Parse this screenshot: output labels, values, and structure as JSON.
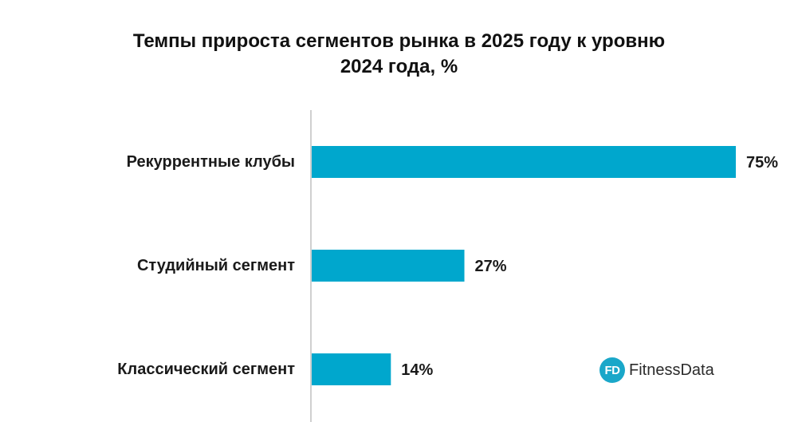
{
  "chart_data": {
    "type": "bar",
    "orientation": "horizontal",
    "title_lines": [
      "Темпы прироста сегментов рынка в 2025 году к уровню",
      "2024 года, %"
    ],
    "categories": [
      "Рекуррентные клубы",
      "Студийный сегмент",
      "Классический сегмент"
    ],
    "values": [
      75,
      27,
      14
    ],
    "value_labels": [
      "75%",
      "27%",
      "14%"
    ],
    "xlim": [
      0,
      75
    ],
    "grid": false,
    "bar_color": "#00a7cd",
    "axis_color": "#d0d0d0"
  },
  "logo": {
    "badge_text": "FD",
    "name": "FitnessData",
    "badge_color": "#1aa7c9"
  }
}
